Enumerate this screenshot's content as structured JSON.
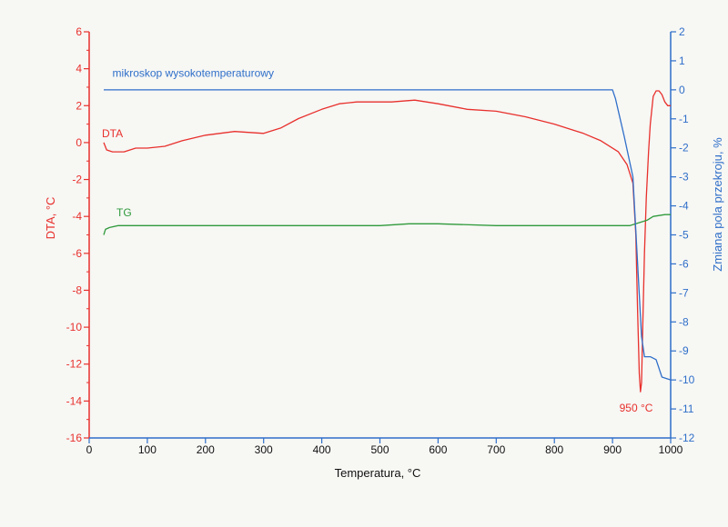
{
  "chart_data": {
    "type": "line",
    "title": "",
    "xlabel": "Temperatura, °C",
    "xlim": [
      0,
      1000
    ],
    "xticks": [
      0,
      100,
      200,
      300,
      400,
      500,
      600,
      700,
      800,
      900,
      1000
    ],
    "y_left": {
      "label": "DTA, °C",
      "lim": [
        -16,
        6
      ],
      "ticks": [
        6,
        4,
        2,
        0,
        -2,
        -4,
        -6,
        -8,
        -10,
        -12,
        -14,
        -16
      ],
      "color": "#e8302c"
    },
    "y_right": {
      "label": "Zmiana pola przekroju, %",
      "lim": [
        -12,
        2
      ],
      "ticks": [
        2,
        1,
        0,
        -1,
        -2,
        -3,
        -4,
        -5,
        -6,
        -7,
        -8,
        -9,
        -10,
        -11,
        -12
      ],
      "color": "#2f6fc9"
    },
    "grid": false,
    "series": [
      {
        "name": "DTA",
        "axis": "left",
        "color": "#e8302c",
        "x": [
          25,
          30,
          40,
          60,
          80,
          100,
          130,
          160,
          200,
          250,
          300,
          330,
          360,
          400,
          430,
          460,
          490,
          520,
          560,
          600,
          650,
          700,
          750,
          800,
          850,
          880,
          910,
          925,
          935,
          940,
          943,
          946,
          948,
          950,
          952,
          955,
          958,
          962,
          965,
          970,
          975,
          980,
          985,
          990,
          995,
          1000
        ],
        "y": [
          0.0,
          -0.4,
          -0.5,
          -0.5,
          -0.3,
          -0.3,
          -0.2,
          0.1,
          0.4,
          0.6,
          0.5,
          0.8,
          1.3,
          1.8,
          2.1,
          2.2,
          2.2,
          2.2,
          2.3,
          2.1,
          1.8,
          1.7,
          1.4,
          1.0,
          0.5,
          0.1,
          -0.5,
          -1.2,
          -2.2,
          -5.0,
          -9.0,
          -12.5,
          -13.5,
          -13.0,
          -10.0,
          -6.0,
          -3.0,
          -0.5,
          1.0,
          2.5,
          2.8,
          2.8,
          2.6,
          2.2,
          2.0,
          2.0
        ]
      },
      {
        "name": "TG",
        "axis": "left",
        "color": "#2f9a3b",
        "x": [
          25,
          28,
          35,
          50,
          100,
          200,
          300,
          400,
          500,
          550,
          600,
          700,
          800,
          900,
          930,
          950,
          960,
          970,
          990,
          1000
        ],
        "y": [
          -5.0,
          -4.7,
          -4.6,
          -4.5,
          -4.5,
          -4.5,
          -4.5,
          -4.5,
          -4.5,
          -4.4,
          -4.4,
          -4.5,
          -4.5,
          -4.5,
          -4.5,
          -4.3,
          -4.2,
          -4.0,
          -3.9,
          -3.9
        ]
      },
      {
        "name": "mikroskop wysokotemperaturowy",
        "axis": "right",
        "color": "#2f6fc9",
        "x": [
          25,
          900,
          905,
          920,
          935,
          950,
          955,
          960,
          962,
          965,
          975,
          985,
          1000
        ],
        "y": [
          0.0,
          0.0,
          -0.3,
          -1.6,
          -3.0,
          -8.5,
          -9.2,
          -9.2,
          -9.2,
          -9.2,
          -9.3,
          -9.9,
          -10.0
        ]
      }
    ],
    "annotations": [
      {
        "text": "950 °C",
        "x": 950,
        "y": -13.5,
        "axis": "left"
      }
    ]
  }
}
